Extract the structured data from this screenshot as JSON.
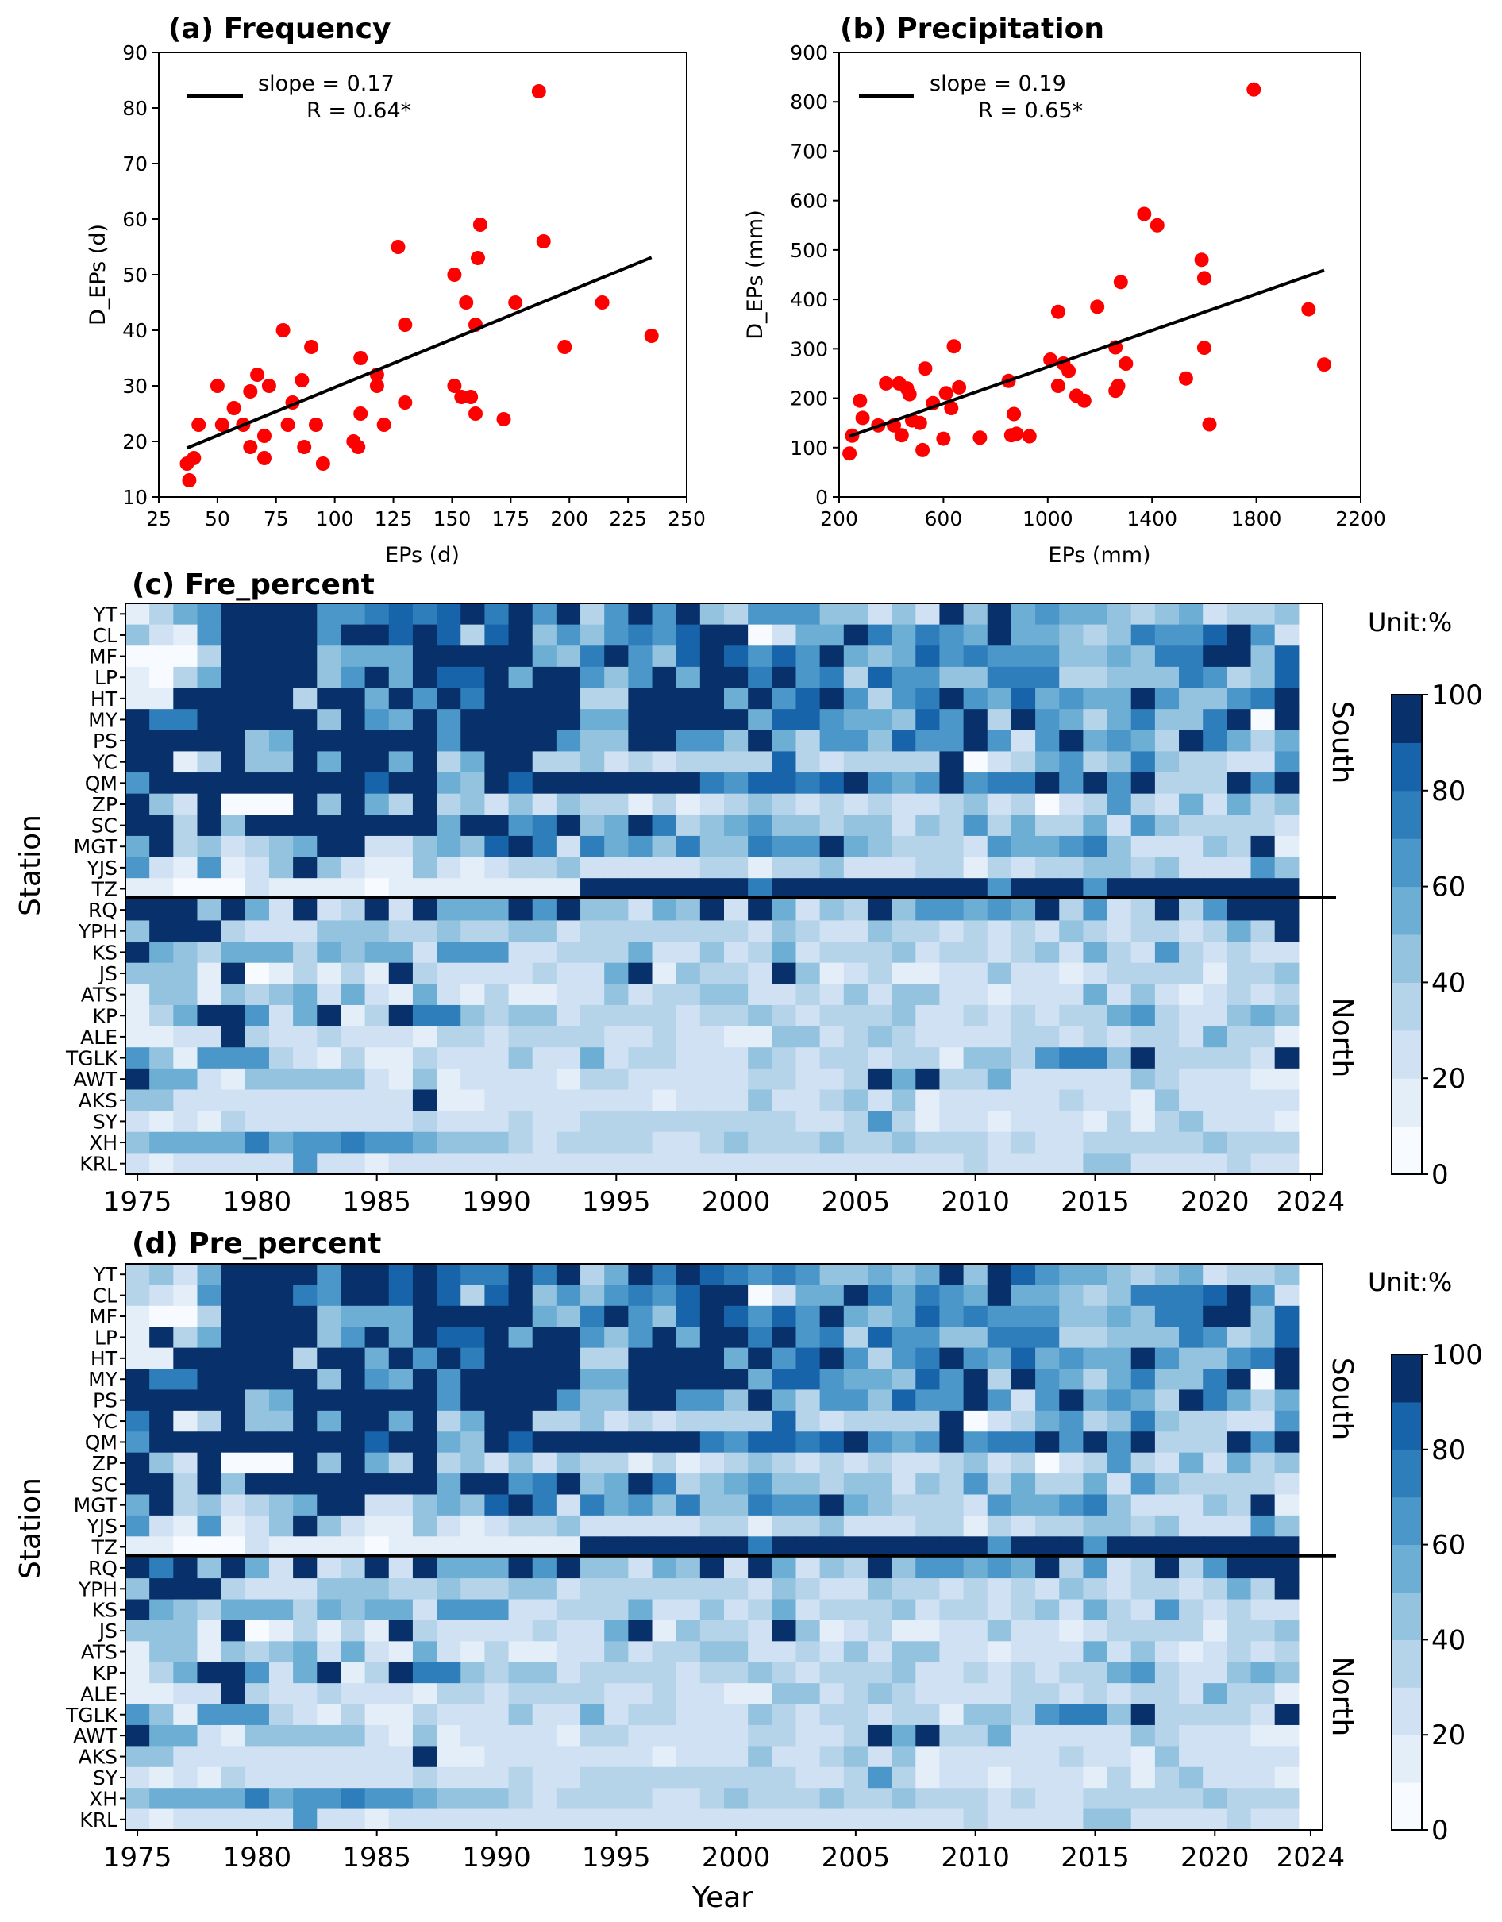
{
  "chart_data": [
    {
      "id": "a",
      "type": "scatter",
      "title": "(a) Frequency",
      "xlabel": "EPs (d)",
      "ylabel": "D_EPs (d)",
      "xlim": [
        25,
        250
      ],
      "ylim": [
        10,
        90
      ],
      "xticks": [
        25,
        50,
        75,
        100,
        125,
        150,
        175,
        200,
        225,
        250
      ],
      "yticks": [
        10,
        20,
        30,
        40,
        50,
        60,
        70,
        80,
        90
      ],
      "legend": {
        "position": "top-left",
        "line1": "slope = 0.17",
        "line2": "R = 0.64*"
      },
      "fit_line": {
        "x": [
          37,
          235
        ],
        "y": [
          18.8,
          53.1
        ]
      },
      "points": [
        [
          37,
          16
        ],
        [
          38,
          13
        ],
        [
          40,
          17
        ],
        [
          42,
          23
        ],
        [
          50,
          30
        ],
        [
          52,
          23
        ],
        [
          57,
          26
        ],
        [
          61,
          23
        ],
        [
          64,
          29
        ],
        [
          64,
          19
        ],
        [
          67,
          32
        ],
        [
          70,
          17
        ],
        [
          70,
          21
        ],
        [
          72,
          30
        ],
        [
          78,
          40
        ],
        [
          80,
          23
        ],
        [
          82,
          27
        ],
        [
          86,
          31
        ],
        [
          87,
          19
        ],
        [
          90,
          37
        ],
        [
          92,
          23
        ],
        [
          95,
          16
        ],
        [
          108,
          20
        ],
        [
          110,
          19
        ],
        [
          111,
          35
        ],
        [
          111,
          25
        ],
        [
          118,
          30
        ],
        [
          118,
          32
        ],
        [
          121,
          23
        ],
        [
          127,
          55
        ],
        [
          130,
          41
        ],
        [
          130,
          27
        ],
        [
          151,
          50
        ],
        [
          151,
          30
        ],
        [
          154,
          28
        ],
        [
          156,
          45
        ],
        [
          158,
          28
        ],
        [
          160,
          41
        ],
        [
          160,
          25
        ],
        [
          161,
          53
        ],
        [
          162,
          59
        ],
        [
          172,
          24
        ],
        [
          177,
          45
        ],
        [
          187,
          83
        ],
        [
          189,
          56
        ],
        [
          198,
          37
        ],
        [
          214,
          45
        ],
        [
          235,
          39
        ]
      ]
    },
    {
      "id": "b",
      "type": "scatter",
      "title": "(b) Precipitation",
      "xlabel": "EPs (mm)",
      "ylabel": "D_EPs (mm)",
      "xlim": [
        200,
        2200
      ],
      "ylim": [
        0,
        900
      ],
      "xticks": [
        200,
        600,
        1000,
        1400,
        1800,
        2200
      ],
      "yticks": [
        0,
        100,
        200,
        300,
        400,
        500,
        600,
        700,
        800,
        900
      ],
      "legend": {
        "position": "top-left",
        "line1": "slope = 0.19",
        "line2": "R = 0.65*"
      },
      "fit_line": {
        "x": [
          240,
          2060
        ],
        "y": [
          123,
          459
        ]
      },
      "points": [
        [
          240,
          88
        ],
        [
          250,
          124
        ],
        [
          280,
          195
        ],
        [
          290,
          160
        ],
        [
          350,
          145
        ],
        [
          380,
          230
        ],
        [
          410,
          145
        ],
        [
          430,
          230
        ],
        [
          440,
          125
        ],
        [
          460,
          220
        ],
        [
          470,
          208
        ],
        [
          480,
          155
        ],
        [
          510,
          150
        ],
        [
          520,
          95
        ],
        [
          530,
          260
        ],
        [
          560,
          190
        ],
        [
          600,
          118
        ],
        [
          610,
          210
        ],
        [
          630,
          180
        ],
        [
          640,
          305
        ],
        [
          660,
          222
        ],
        [
          740,
          120
        ],
        [
          850,
          235
        ],
        [
          860,
          125
        ],
        [
          870,
          168
        ],
        [
          880,
          128
        ],
        [
          930,
          123
        ],
        [
          1010,
          278
        ],
        [
          1040,
          375
        ],
        [
          1040,
          225
        ],
        [
          1060,
          270
        ],
        [
          1080,
          255
        ],
        [
          1110,
          205
        ],
        [
          1140,
          195
        ],
        [
          1190,
          385
        ],
        [
          1260,
          303
        ],
        [
          1260,
          215
        ],
        [
          1270,
          225
        ],
        [
          1280,
          435
        ],
        [
          1300,
          270
        ],
        [
          1370,
          573
        ],
        [
          1420,
          550
        ],
        [
          1530,
          240
        ],
        [
          1590,
          480
        ],
        [
          1600,
          443
        ],
        [
          1600,
          302
        ],
        [
          1620,
          147
        ],
        [
          1790,
          825
        ],
        [
          2000,
          380
        ],
        [
          2060,
          268
        ]
      ]
    },
    {
      "id": "c",
      "type": "heatmap",
      "title": "(c) Fre_percent",
      "xlabel": "",
      "ylabel": "Station",
      "unit_label": "Unit:%",
      "x_start": 1975,
      "x_end": 2024,
      "xticks": [
        1975,
        1980,
        1985,
        1990,
        1995,
        2000,
        2005,
        2010,
        2015,
        2020,
        2024
      ],
      "stations": [
        "YT",
        "CL",
        "MF",
        "LP",
        "HT",
        "MY",
        "PS",
        "YC",
        "QM",
        "ZP",
        "SC",
        "MGT",
        "YJS",
        "TZ",
        "RQ",
        "YPH",
        "KS",
        "JS",
        "ATS",
        "KP",
        "ALE",
        "TGLK",
        "AWT",
        "AKS",
        "SY",
        "XH",
        "KRL"
      ],
      "regions": {
        "south": "South",
        "north": "North",
        "divider_after_station": "TZ"
      },
      "colorbar": {
        "min": 0,
        "max": 100,
        "step": 10,
        "ticks": [
          0,
          20,
          40,
          60,
          80,
          100
        ]
      },
      "rows": [
        "1356999966787897969369694366644242949565543452334",
        "4216999969989838946467689902559757659554347668962",
        "0003999945559999954796489868695458676664454779948",
        "1035999946959889599646959979673866447773344476348",
        "1199999399596979999339999596896367965856559644679",
        "9779999949659699999559999958865548693965357447909",
        "9999945999999699996449966495366486696269565397535",
        "9913944959959359933423233338323333902356347433226",
        "6999999999899549899999997688789656967796969333969",
        "9429000949539342424331312343232322342302363252534",
        "9939499999999599679459734564434424363533526433332",
        "5934234599224548972756474476695433326556742224391",
        "6216124942114212334222223313342223313233443422264",
        "1100021111011111111999999979999999996999699999999",
        "9994952923929555969442549295243946656593623936999",
        "4999322244433433442333333324322433232324323323539",
        "9543555354552666223335224235233342332342532632322",
        "4441901313193222232259143329412311224221233331334",
        "1441434525215213112242334422324244221222524212323",
        "1359962591397743442333323343233342232323356322454",
        "1122932232221332333322322114423432222332323325331",
        "6416663213113222422523322243233233144367749333329",
        "9552144444214122221332222233223959335222224322211",
        "4422222222229112222222122242234241222223221422222",
        "2121322222223222322333333333223631221222131342221",
        "4555575667665444323333223433343343332322333334333",
        "2122222622122222222222222222222222232222442222322"
      ]
    },
    {
      "id": "d",
      "type": "heatmap",
      "title": "(d) Pre_percent",
      "xlabel": "Year",
      "ylabel": "Station",
      "unit_label": "Unit:%",
      "x_start": 1975,
      "x_end": 2024,
      "xticks": [
        1975,
        1980,
        1985,
        1990,
        1995,
        2000,
        2005,
        2010,
        2015,
        2020,
        2024
      ],
      "stations": [
        "YT",
        "CL",
        "MF",
        "LP",
        "HT",
        "MY",
        "PS",
        "YC",
        "QM",
        "ZP",
        "SC",
        "MGT",
        "YJS",
        "TZ",
        "RQ",
        "YPH",
        "KS",
        "JS",
        "ATS",
        "KP",
        "ALE",
        "TGLK",
        "AWT",
        "AKS",
        "SY",
        "XH",
        "KRL"
      ],
      "regions": {
        "south": "South",
        "north": "North",
        "divider_after_station": "TZ"
      },
      "colorbar": {
        "min": 0,
        "max": 100,
        "step": 10,
        "ticks": [
          0,
          20,
          40,
          60,
          80,
          100
        ]
      },
      "rows": [
        "3425999969989877979359798767644545949865543452334",
        "3216999769989838946467689902559757659554347778962",
        "1003999945559999954796489868695458676664454779948",
        "1935999946959889599646959979673866447773344476348",
        "1199999399596979999339999596896367965856559644679",
        "9779999949659699999559999958865548693965357447909",
        "9999945999999699996449966495366486696269565397535",
        "7913944959959359933423233338323333902356347433226",
        "6999999999899549899999997688789656967796969333969",
        "9429000949539342424331312343232322342302363252534",
        "9939499999999599679459734564434424363533526433332",
        "5934234599224548972756474476695433326556742224391",
        "6216124942114212334222223313342223313233443422264",
        "1100021111011111111999999979999999996999699999999",
        "9794952923929555969442549295243946656593623936999",
        "4999322244433433442333333324322433232324323323539",
        "9543555354552666223335224235233342332342532632322",
        "4441901313193222232259143329412311224221233331334",
        "1441434525215213112242334422324244221222524212323",
        "1359962591397743442333323343233342232323356322454",
        "1122932232221332333322322114423432222332323325331",
        "6416663213113222422523322243233233144367749333329",
        "9552144444214122221332222233223959335222224322211",
        "4422222222229112222222122242234241222223221422222",
        "2121322222223222322333333333223631221222131342221",
        "4555575667665444323333223433343343332322333334333",
        "2122222622122222222222222222222222232222442222322"
      ]
    }
  ]
}
